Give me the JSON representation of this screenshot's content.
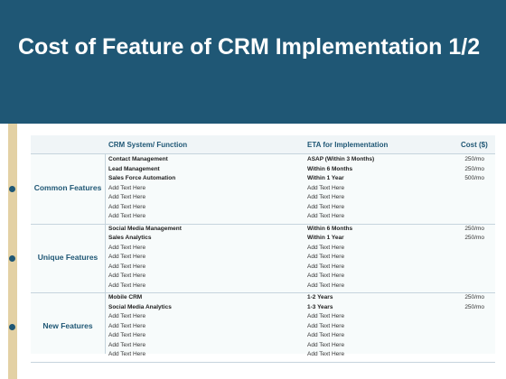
{
  "title": "Cost of Feature of CRM Implementation 1/2",
  "headers": {
    "system": "CRM System/ Function",
    "eta": "ETA for Implementation",
    "cost": "Cost ($)"
  },
  "groups": [
    {
      "label": "Common Features",
      "rows": [
        {
          "system": "Contact Management",
          "eta": "ASAP (Within 3 Months)",
          "cost": "250/mo",
          "bold": true
        },
        {
          "system": "Lead Management",
          "eta": "Within 6 Months",
          "cost": "250/mo",
          "bold": true
        },
        {
          "system": "Sales Force Automation",
          "eta": "Within 1 Year",
          "cost": "500/mo",
          "bold": true
        },
        {
          "system": "Add Text Here",
          "eta": "Add Text Here",
          "cost": "",
          "bold": false
        },
        {
          "system": "Add Text Here",
          "eta": "Add Text Here",
          "cost": "",
          "bold": false
        },
        {
          "system": "Add Text Here",
          "eta": "Add Text Here",
          "cost": "",
          "bold": false
        },
        {
          "system": "Add Text Here",
          "eta": "Add Text Here",
          "cost": "",
          "bold": false
        }
      ]
    },
    {
      "label": "Unique Features",
      "rows": [
        {
          "system": "Social Media Management",
          "eta": "Within 6 Months",
          "cost": "250/mo",
          "bold": true
        },
        {
          "system": "Sales Analytics",
          "eta": "Within 1 Year",
          "cost": "250/mo",
          "bold": true
        },
        {
          "system": "Add Text Here",
          "eta": "Add Text Here",
          "cost": "",
          "bold": false
        },
        {
          "system": "Add Text Here",
          "eta": "Add Text Here",
          "cost": "",
          "bold": false
        },
        {
          "system": "Add Text Here",
          "eta": "Add Text Here",
          "cost": "",
          "bold": false
        },
        {
          "system": "Add Text Here",
          "eta": "Add Text Here",
          "cost": "",
          "bold": false
        },
        {
          "system": "Add Text Here",
          "eta": "Add Text Here",
          "cost": "",
          "bold": false
        }
      ]
    },
    {
      "label": "New Features",
      "rows": [
        {
          "system": "Mobile CRM",
          "eta": "1-2 Years",
          "cost": "250/mo",
          "bold": true
        },
        {
          "system": "Social Media Analytics",
          "eta": "1-3 Years",
          "cost": "250/mo",
          "bold": true
        },
        {
          "system": "Add Text Here",
          "eta": "Add Text Here",
          "cost": "",
          "bold": false
        },
        {
          "system": "Add Text Here",
          "eta": "Add Text Here",
          "cost": "",
          "bold": false
        },
        {
          "system": "Add Text Here",
          "eta": "Add Text Here",
          "cost": "",
          "bold": false
        },
        {
          "system": "Add Text Here",
          "eta": "Add Text Here",
          "cost": "",
          "bold": false
        },
        {
          "system": "Add Text Here",
          "eta": "Add Text Here",
          "cost": "",
          "bold": false
        }
      ]
    }
  ],
  "colors": {
    "header_bg": "#1f5775",
    "accent_bar": "#e3d1a4"
  }
}
